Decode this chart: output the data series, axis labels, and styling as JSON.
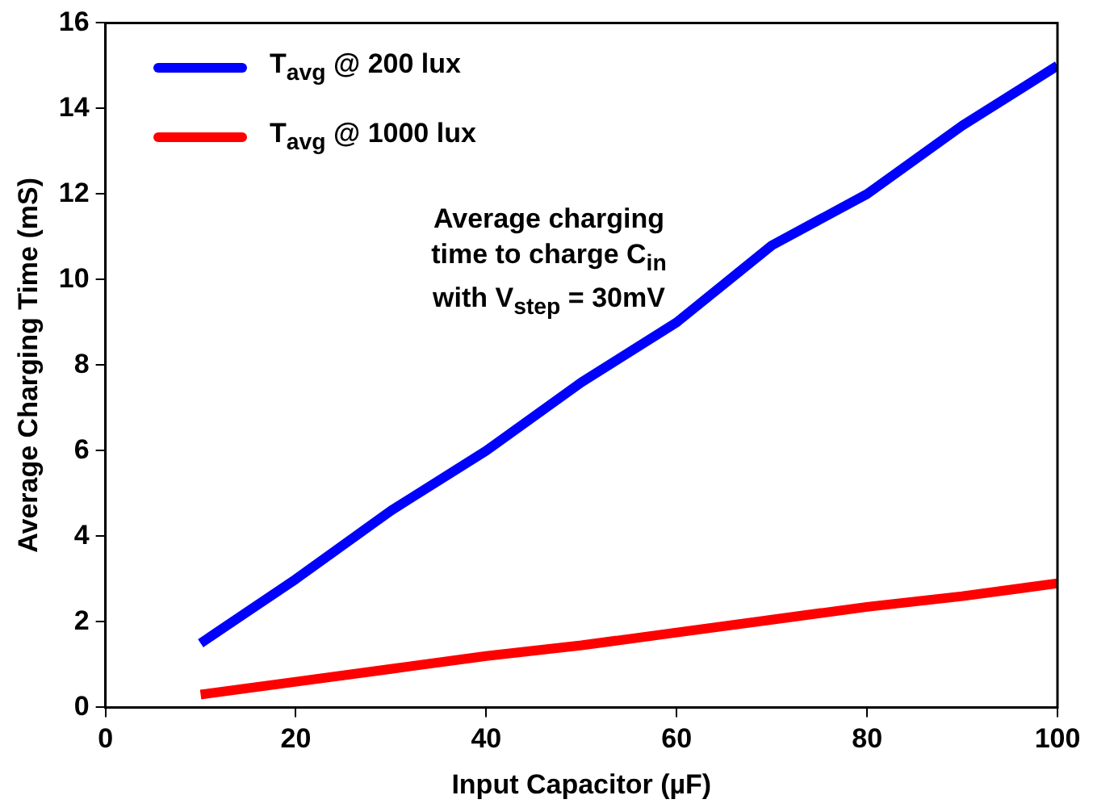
{
  "chart_data": {
    "type": "line",
    "xlabel": "Input Capacitor (µF)",
    "ylabel": "Average Charging Time (mS)",
    "x": [
      10,
      20,
      30,
      40,
      50,
      60,
      70,
      80,
      90,
      100
    ],
    "series": [
      {
        "name": "T$_{avg}$ @ 200 lux",
        "color": "#0000ff",
        "values": [
          1.5,
          3.0,
          4.6,
          6.0,
          7.6,
          9.0,
          10.8,
          12.0,
          13.6,
          15.0
        ]
      },
      {
        "name": "T$_{avg}$ @ 1000 lux",
        "color": "#ff0000",
        "values": [
          0.3,
          0.6,
          0.9,
          1.2,
          1.45,
          1.75,
          2.05,
          2.35,
          2.6,
          2.9
        ]
      }
    ],
    "xlim": [
      0,
      100
    ],
    "xticks": [
      0,
      20,
      40,
      60,
      80,
      100
    ],
    "ylim": [
      0,
      16
    ],
    "yticks": [
      0,
      2,
      4,
      6,
      8,
      10,
      12,
      14,
      16
    ],
    "grid": false,
    "legend": "top left",
    "marker": "none",
    "line_style": "solid",
    "annotations": [
      "Average charging time to charge C$_{in}$ with V$_{step}$ = 30mV"
    ]
  }
}
